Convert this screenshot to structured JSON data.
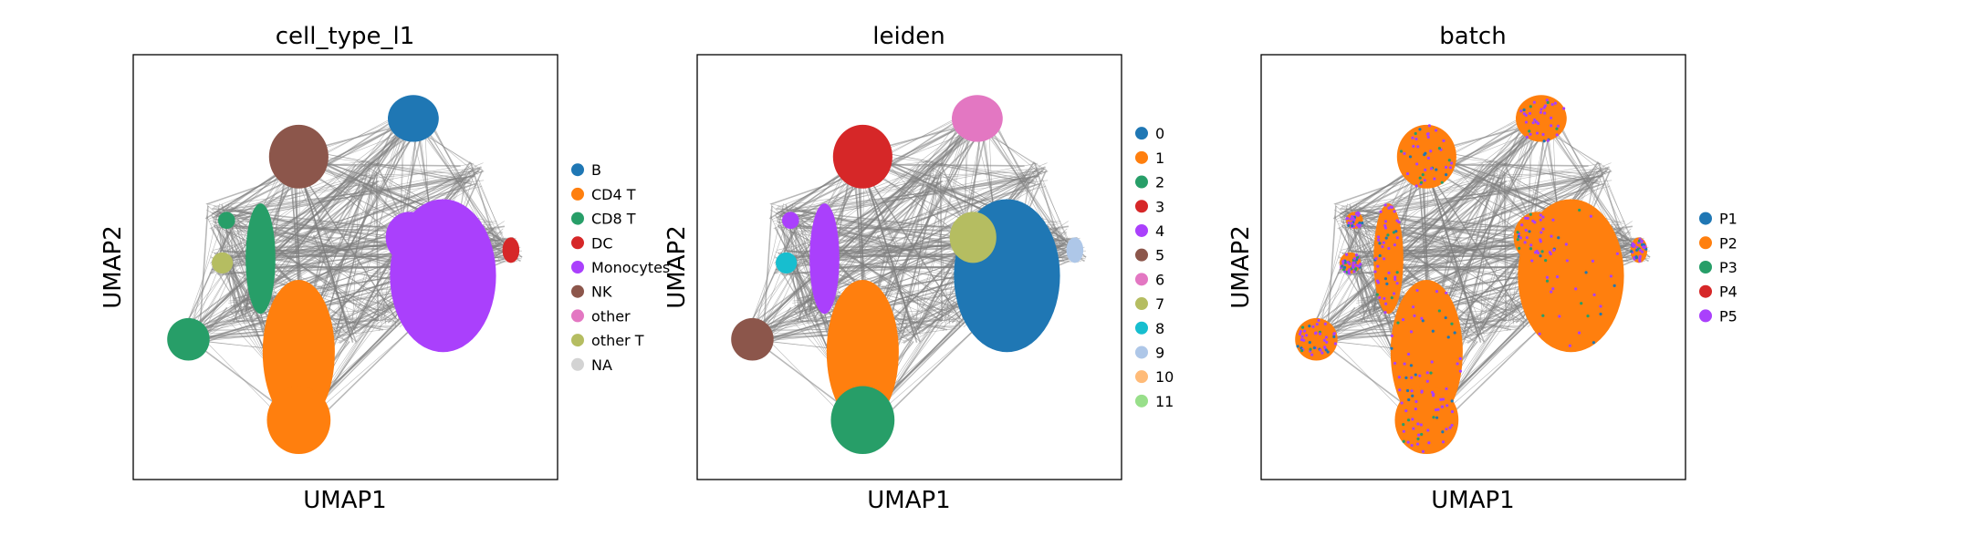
{
  "chart_data": [
    {
      "type": "scatter",
      "title": "cell_type_l1",
      "xlabel": "UMAP1",
      "ylabel": "UMAP2",
      "grid": false,
      "legend_placement": "right",
      "categories": [
        "B",
        "CD4 T",
        "CD8 T",
        "DC",
        "Monocytes",
        "NK",
        "other",
        "other T",
        "NA"
      ],
      "colors": [
        "#1f77b4",
        "#ff7f0e",
        "#279e68",
        "#d62728",
        "#aa40fc",
        "#8c564b",
        "#e377c2",
        "#b5bd61",
        "#d3d3d3"
      ],
      "edge_color": "#808080"
    },
    {
      "type": "scatter",
      "title": "leiden",
      "xlabel": "UMAP1",
      "ylabel": "UMAP2",
      "grid": false,
      "legend_placement": "right",
      "categories": [
        "0",
        "1",
        "2",
        "3",
        "4",
        "5",
        "6",
        "7",
        "8",
        "9",
        "10",
        "11"
      ],
      "colors": [
        "#1f77b4",
        "#ff7f0e",
        "#279e68",
        "#d62728",
        "#aa40fc",
        "#8c564b",
        "#e377c2",
        "#b5bd61",
        "#17becf",
        "#aec7e8",
        "#ffbb78",
        "#98df8a"
      ],
      "edge_color": "#808080"
    },
    {
      "type": "scatter",
      "title": "batch",
      "xlabel": "UMAP1",
      "ylabel": "UMAP2",
      "grid": false,
      "legend_placement": "right",
      "categories": [
        "P1",
        "P2",
        "P3",
        "P4",
        "P5"
      ],
      "colors": [
        "#1f77b4",
        "#ff7f0e",
        "#279e68",
        "#d62728",
        "#aa40fc"
      ],
      "edge_color": "#808080"
    }
  ]
}
